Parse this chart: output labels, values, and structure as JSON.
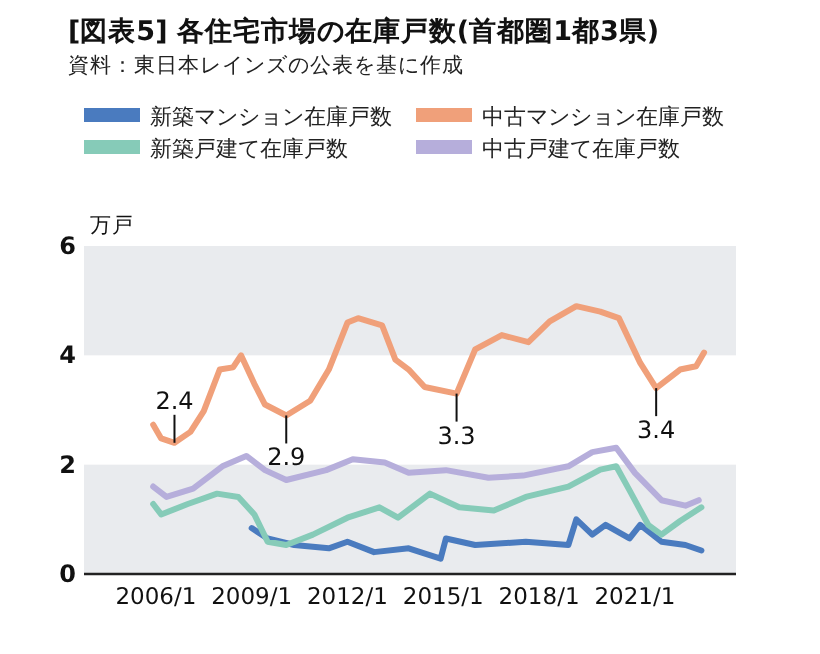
{
  "chart_data": {
    "type": "line",
    "title": "[図表5] 各住宅市場の在庫戸数(首都圏1都3県)",
    "ylabel": "万戸",
    "annotations": [
      "資料：東日本レインズの公表を基に作成",
      {
        "text": "2.4",
        "x": "2006-08",
        "y": 2.4
      },
      {
        "text": "2.9",
        "x": "2010-02",
        "y": 2.9
      },
      {
        "text": "3.3",
        "x": "2015-06",
        "y": 3.3
      },
      {
        "text": "3.4",
        "x": "2021-09",
        "y": 3.4
      }
    ],
    "xlim": [
      "2003-10",
      "2024-03"
    ],
    "xticks": [
      {
        "value": "2006-01",
        "label": "2006/1"
      },
      {
        "value": "2009-01",
        "label": "2009/1"
      },
      {
        "value": "2012-01",
        "label": "2012/1"
      },
      {
        "value": "2015-01",
        "label": "2015/1"
      },
      {
        "value": "2018-01",
        "label": "2018/1"
      },
      {
        "value": "2021-01",
        "label": "2021/1"
      }
    ],
    "ylim": [
      0,
      6
    ],
    "yticks": [
      0,
      2,
      4,
      6
    ],
    "grid": false,
    "legend": "top",
    "bands": [
      {
        "axis": "y",
        "from": 0,
        "to": 2,
        "color": "#e9ebee"
      },
      {
        "axis": "y",
        "from": 4,
        "to": 6,
        "color": "#e9ebee"
      }
    ],
    "series": [
      {
        "name": "新築マンション在庫戸数",
        "color": "#4a7bbf",
        "x": [
          "2009-01",
          "2009-07",
          "2010-05",
          "2011-06",
          "2012-01",
          "2012-11",
          "2013-12",
          "2014-12",
          "2015-02",
          "2016-01",
          "2017-08",
          "2018-12",
          "2019-03",
          "2019-09",
          "2020-02",
          "2020-11",
          "2021-03",
          "2021-11",
          "2022-08",
          "2023-02"
        ],
        "values": [
          0.84,
          0.65,
          0.53,
          0.47,
          0.59,
          0.4,
          0.47,
          0.28,
          0.65,
          0.53,
          0.59,
          0.53,
          1.0,
          0.72,
          0.9,
          0.65,
          0.9,
          0.59,
          0.53,
          0.43
        ]
      },
      {
        "name": "中古マンション在庫戸数",
        "color": "#f0a07a",
        "x": [
          "2005-12",
          "2006-03",
          "2006-08",
          "2007-02",
          "2007-07",
          "2008-01",
          "2008-06",
          "2008-09",
          "2009-02",
          "2009-06",
          "2010-02",
          "2010-11",
          "2011-06",
          "2012-01",
          "2012-05",
          "2013-02",
          "2013-07",
          "2013-12",
          "2014-06",
          "2015-06",
          "2016-01",
          "2016-11",
          "2017-09",
          "2018-05",
          "2019-03",
          "2019-12",
          "2020-07",
          "2021-03",
          "2021-09",
          "2022-06",
          "2022-12",
          "2023-03"
        ],
        "values": [
          2.73,
          2.48,
          2.4,
          2.6,
          2.98,
          3.74,
          3.78,
          4.0,
          3.48,
          3.1,
          2.9,
          3.17,
          3.74,
          4.6,
          4.68,
          4.55,
          3.92,
          3.74,
          3.42,
          3.3,
          4.11,
          4.37,
          4.24,
          4.62,
          4.9,
          4.8,
          4.68,
          3.86,
          3.4,
          3.74,
          3.8,
          4.05
        ]
      },
      {
        "name": "新築戸建て在庫戸数",
        "color": "#86cbb8",
        "x": [
          "2005-12",
          "2006-03",
          "2007-01",
          "2007-12",
          "2008-08",
          "2009-02",
          "2009-07",
          "2010-02",
          "2010-12",
          "2012-01",
          "2013-01",
          "2013-08",
          "2014-08",
          "2015-07",
          "2016-08",
          "2017-08",
          "2018-12",
          "2019-12",
          "2020-06",
          "2020-11",
          "2021-06",
          "2021-11",
          "2022-06",
          "2023-02"
        ],
        "values": [
          1.28,
          1.09,
          1.28,
          1.47,
          1.41,
          1.09,
          0.59,
          0.53,
          0.72,
          1.03,
          1.22,
          1.03,
          1.47,
          1.22,
          1.16,
          1.41,
          1.6,
          1.91,
          1.97,
          1.53,
          0.9,
          0.72,
          0.97,
          1.22
        ]
      },
      {
        "name": "中古戸建て在庫戸数",
        "color": "#b6aedb",
        "x": [
          "2005-12",
          "2006-05",
          "2007-03",
          "2008-02",
          "2008-11",
          "2009-06",
          "2010-02",
          "2011-05",
          "2012-03",
          "2013-03",
          "2013-12",
          "2015-02",
          "2016-06",
          "2017-07",
          "2018-12",
          "2019-09",
          "2020-06",
          "2021-01",
          "2021-11",
          "2022-08",
          "2023-01"
        ],
        "values": [
          1.6,
          1.41,
          1.56,
          1.97,
          2.16,
          1.9,
          1.72,
          1.9,
          2.1,
          2.04,
          1.85,
          1.9,
          1.76,
          1.8,
          1.97,
          2.23,
          2.31,
          1.85,
          1.35,
          1.25,
          1.35
        ]
      }
    ]
  }
}
